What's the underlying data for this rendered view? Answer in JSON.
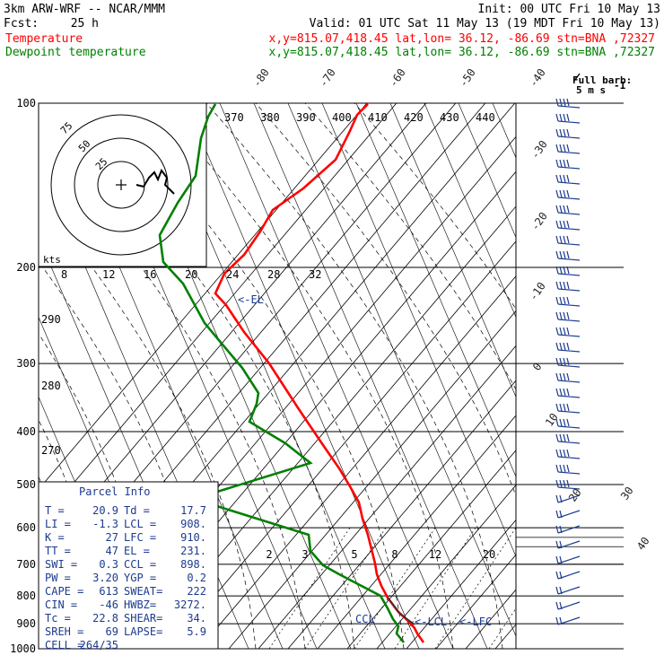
{
  "header": {
    "model": "3km ARW-WRF -- NCAR/MMM",
    "init": "Init: 00 UTC Fri 10 May 13",
    "fcst_label": "Fcst:",
    "fcst_value": "25 h",
    "valid": "Valid: 01 UTC Sat 11 May 13 (19 MDT Fri 10 May 13)",
    "fields": [
      {
        "name": "Temperature",
        "loc": "x,y=815.07,418.45   lat,lon= 36.12, -86.69  stn=BNA ,72327",
        "color": "#ff0000"
      },
      {
        "name": "Dewpoint temperature",
        "loc": "x,y=815.07,418.45   lat,lon= 36.12, -86.69  stn=BNA ,72327",
        "color": "#008000"
      }
    ]
  },
  "barb_legend": {
    "line1": "Full barb:",
    "line2": "5 m s"
  },
  "chart_data": {
    "type": "line",
    "chart_kind": "skew-T log-p sounding",
    "pressure_levels": [
      100,
      200,
      300,
      400,
      500,
      600,
      700,
      800,
      900,
      1000
    ],
    "isotherm_labels": [
      -80,
      -70,
      -60,
      -50,
      -40,
      -30,
      -20,
      -10,
      0,
      10,
      20,
      30,
      40
    ],
    "theta_labels": [
      370,
      380,
      390,
      400,
      410,
      420,
      430,
      440
    ],
    "theta_labels_left": [
      290,
      280,
      270
    ],
    "mixing_ratio_labels": [
      2,
      3,
      5,
      8,
      12,
      20
    ],
    "hodograph": {
      "units_label": "kts",
      "ring_labels": [
        75,
        50,
        25
      ],
      "speed_ticks": [
        8,
        12,
        16,
        20,
        24,
        28,
        32
      ]
    },
    "series": [
      {
        "name": "Temperature",
        "color": "#ff0000",
        "points": [
          [
            1000,
            -15
          ],
          [
            975,
            -14
          ],
          [
            950,
            -15
          ],
          [
            925,
            -17
          ],
          [
            900,
            -20
          ],
          [
            850,
            -26
          ],
          [
            800,
            -32
          ],
          [
            750,
            -38
          ],
          [
            700,
            -44
          ],
          [
            650,
            -50
          ],
          [
            600,
            -54
          ],
          [
            550,
            -60
          ],
          [
            500,
            -67
          ],
          [
            450,
            -72
          ],
          [
            400,
            -79
          ],
          [
            350,
            -85
          ],
          [
            300,
            -94
          ],
          [
            250,
            -100
          ],
          [
            225,
            -103
          ],
          [
            200,
            -103
          ],
          [
            180,
            -100
          ],
          [
            150,
            -100
          ],
          [
            130,
            -94
          ],
          [
            115,
            -89
          ],
          [
            100,
            -84
          ]
        ]
      },
      {
        "name": "Dewpoint temperature",
        "color": "#008000",
        "points": [
          [
            1000,
            -26
          ],
          [
            975,
            -27
          ],
          [
            950,
            -28
          ],
          [
            925,
            -28
          ],
          [
            900,
            -27
          ],
          [
            850,
            -28
          ],
          [
            800,
            -32
          ],
          [
            750,
            -41
          ],
          [
            700,
            -54
          ],
          [
            650,
            -66
          ],
          [
            600,
            -68
          ],
          [
            550,
            -82
          ],
          [
            500,
            -62
          ],
          [
            450,
            -78
          ],
          [
            400,
            -93
          ],
          [
            360,
            -98
          ],
          [
            330,
            -95
          ],
          [
            300,
            -99
          ],
          [
            250,
            -107
          ],
          [
            200,
            -112
          ],
          [
            180,
            -108
          ],
          [
            150,
            -100
          ],
          [
            120,
            -92
          ],
          [
            100,
            -85
          ]
        ]
      }
    ],
    "annotations": [
      {
        "text": "<-EL",
        "p": 231
      },
      {
        "text": "CCL",
        "p": 898
      },
      {
        "text": "<-LCL",
        "p": 908
      },
      {
        "text": "<-LFC",
        "p": 910
      }
    ],
    "parcel_info": {
      "title": "Parcel Info",
      "rows": [
        [
          "T  =",
          "20.9",
          "Td =",
          "17.7"
        ],
        [
          "LI =",
          "-1.3",
          "LCL =",
          "908."
        ],
        [
          "K  =",
          "27",
          "LFC =",
          "910."
        ],
        [
          "TT =",
          "47",
          "EL =",
          "231."
        ],
        [
          "SWI =",
          "0.3",
          "CCL =",
          "898."
        ],
        [
          "PW =",
          "3.20",
          "YGP =",
          "0.2"
        ],
        [
          "CAPE =",
          "613",
          "SWEAT=",
          "222"
        ],
        [
          "CIN =",
          "-46",
          "HWBZ=",
          "3272."
        ],
        [
          "Tc =",
          "22.8",
          "SHEAR=",
          "34."
        ],
        [
          "SREH =",
          "69",
          "LAPSE=",
          "5.9"
        ],
        [
          "CELL =",
          "264/35",
          "",
          ""
        ]
      ]
    }
  }
}
